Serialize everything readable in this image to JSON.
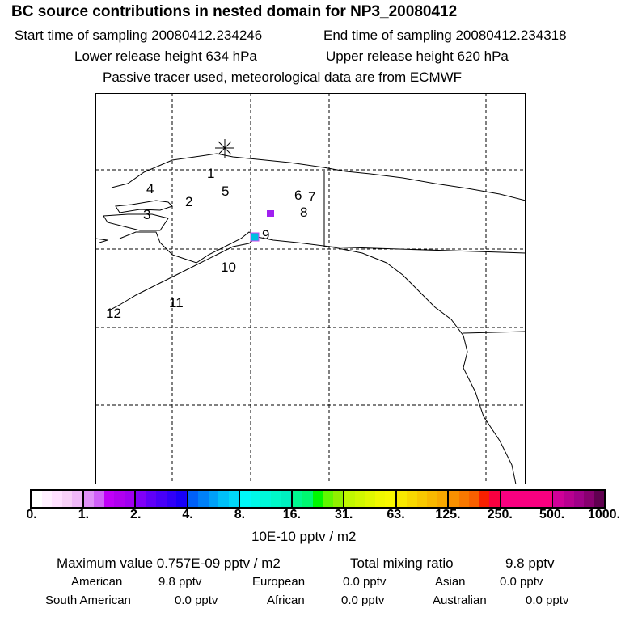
{
  "title": "BC  source contributions in nested domain for NP3_20080412",
  "line2_start": "Start time of sampling 20080412.234246",
  "line2_end": "End time of sampling 20080412.234318",
  "line3_lower": "Lower release height  634 hPa",
  "line3_upper": "Upper release height  620 hPa",
  "line4": "Passive tracer used, meteorological data are from ECMWF",
  "map_labels": [
    "1",
    "2",
    "3",
    "4",
    "5",
    "6",
    "7",
    "8",
    "9",
    "10",
    "11",
    "12"
  ],
  "colorbar": {
    "labels": [
      "0.",
      "1.",
      "2.",
      "4.",
      "8.",
      "16.",
      "31.",
      "63.",
      "125.",
      "250.",
      "500.",
      "1000."
    ],
    "segments": [
      [
        "#ffffff",
        "#fff0ff",
        "#ffe0ff",
        "#f8d0f8",
        "#f0b8f8"
      ],
      [
        "#e090f8",
        "#d060f8",
        "#c000f8",
        "#b000f0",
        "#a000f0"
      ],
      [
        "#8000f8",
        "#6000f8",
        "#4800f8",
        "#3000f8",
        "#1800f8"
      ],
      [
        "#0060f8",
        "#0080f8",
        "#00a0f8",
        "#00c0f8",
        "#00d8f8"
      ],
      [
        "#00f8f8",
        "#00f8e8",
        "#00f8d8",
        "#00f8c8",
        "#00f0c0"
      ],
      [
        "#00f890",
        "#00f870",
        "#00f800",
        "#60f800",
        "#90f000"
      ],
      [
        "#c0f800",
        "#d0f800",
        "#e0f800",
        "#f0f800",
        "#f8f800"
      ],
      [
        "#f8e800",
        "#f8d800",
        "#f8c800",
        "#f8b800",
        "#f8a800"
      ],
      [
        "#f89000",
        "#f87800",
        "#f86000",
        "#f82000",
        "#f80040"
      ],
      [
        "#f80080",
        "#f80080",
        "#f80080",
        "#f80080",
        "#f80080"
      ],
      [
        "#d00098",
        "#b80090",
        "#a00088",
        "#880070",
        "#600050"
      ]
    ],
    "unit": "10E-10 pptv / m2"
  },
  "stats": {
    "max_label": "Maximum value  0.757E-09 pptv / m2",
    "total_label": "Total mixing ratio",
    "total_value": "9.8 pptv",
    "regions": [
      {
        "name": "American",
        "value": "9.8 pptv"
      },
      {
        "name": "European",
        "value": "0.0 pptv"
      },
      {
        "name": "Asian",
        "value": "0.0 pptv"
      },
      {
        "name": "South American",
        "value": "0.0 pptv"
      },
      {
        "name": "African",
        "value": "0.0 pptv"
      },
      {
        "name": "Australian",
        "value": "0.0 pptv"
      }
    ]
  },
  "colors": {
    "source_cell_1": "#a020f0",
    "source_cell_2": "#00c0e0"
  }
}
